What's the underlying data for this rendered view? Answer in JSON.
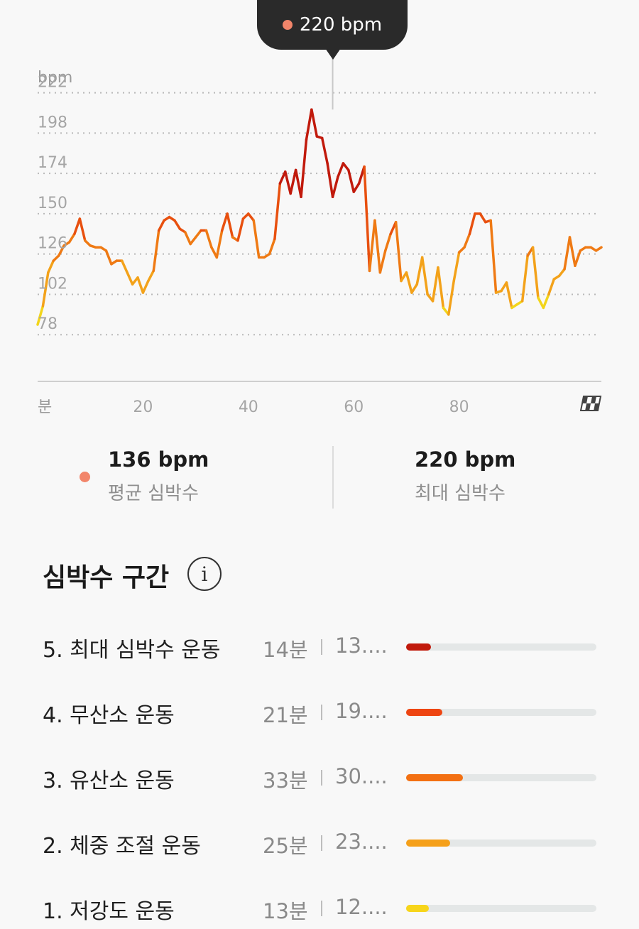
{
  "tooltip": {
    "value": "220 bpm"
  },
  "chart_data": {
    "type": "line",
    "ylabel": "bpm",
    "y_ticks": [
      "222",
      "198",
      "174",
      "150",
      "126",
      "102",
      "78"
    ],
    "y_tick_values": [
      222,
      198,
      174,
      150,
      126,
      102,
      78
    ],
    "xlabel": "분",
    "x_ticks": [
      "20",
      "40",
      "60",
      "80"
    ],
    "x_tick_values": [
      20,
      40,
      60,
      80
    ],
    "xlim": [
      0,
      107
    ],
    "ylim": [
      54,
      240
    ],
    "grid": true,
    "highlight_x": 56,
    "series": [
      {
        "x": [
          0,
          1,
          2,
          3,
          4,
          5,
          6,
          7,
          8,
          9,
          10,
          11,
          12,
          13,
          14,
          15,
          16,
          17,
          18,
          19,
          20,
          21,
          22,
          23,
          24,
          25,
          26,
          27,
          28,
          29,
          30,
          31,
          32,
          33,
          34,
          35,
          36,
          37,
          38,
          39,
          40,
          41,
          42,
          43,
          44,
          45,
          46,
          47,
          48,
          49,
          50,
          51,
          52,
          53,
          54,
          55,
          56,
          57,
          58,
          59,
          60,
          61,
          62,
          63,
          64,
          65,
          66,
          67,
          68,
          69,
          70,
          71,
          72,
          73,
          74,
          75,
          76,
          77,
          78,
          79,
          80,
          81,
          82,
          83,
          84,
          85,
          86,
          87,
          88,
          89,
          90,
          91,
          92,
          93,
          94,
          95,
          96,
          97,
          98,
          99,
          100,
          101,
          102,
          103,
          104,
          105,
          106,
          107
        ],
        "values": [
          84,
          95,
          115,
          122,
          125,
          131,
          133,
          138,
          147,
          134,
          131,
          130,
          130,
          128,
          120,
          122,
          122,
          115,
          108,
          112,
          103,
          110,
          116,
          140,
          146,
          148,
          146,
          141,
          139,
          132,
          136,
          140,
          140,
          130,
          124,
          140,
          150,
          136,
          134,
          147,
          150,
          146,
          124,
          124,
          126,
          135,
          168,
          175,
          162,
          176,
          160,
          194,
          212,
          196,
          195,
          180,
          160,
          172,
          180,
          176,
          163,
          168,
          178,
          116,
          146,
          115,
          128,
          138,
          145,
          110,
          115,
          103,
          108,
          124,
          102,
          98,
          118,
          94,
          90,
          110,
          127,
          130,
          138,
          150,
          150,
          145,
          146,
          103,
          104,
          109,
          94,
          96,
          98,
          125,
          130,
          100,
          94,
          102,
          111,
          113,
          117,
          136,
          119,
          128,
          130,
          130,
          128,
          130
        ]
      }
    ]
  },
  "stats": {
    "avg_value": "136 bpm",
    "avg_label": "평균 심박수",
    "max_value": "220 bpm",
    "max_label": "최대 심박수"
  },
  "zones_title": "심박수 구간",
  "zones": [
    {
      "label": "5. 최대 심박수 운동",
      "duration": "14분",
      "percent": "13....",
      "fraction": 0.13,
      "color": "#c11a0c"
    },
    {
      "label": "4. 무산소 운동",
      "duration": "21분",
      "percent": "19....",
      "fraction": 0.19,
      "color": "#ee4512"
    },
    {
      "label": "3. 유산소 운동",
      "duration": "33분",
      "percent": "30....",
      "fraction": 0.3,
      "color": "#f37012"
    },
    {
      "label": "2. 체중 조절 운동",
      "duration": "25분",
      "percent": "23....",
      "fraction": 0.23,
      "color": "#f5a01a"
    },
    {
      "label": "1. 저강도 운동",
      "duration": "13분",
      "percent": "12....",
      "fraction": 0.12,
      "color": "#f7d51b"
    }
  ]
}
